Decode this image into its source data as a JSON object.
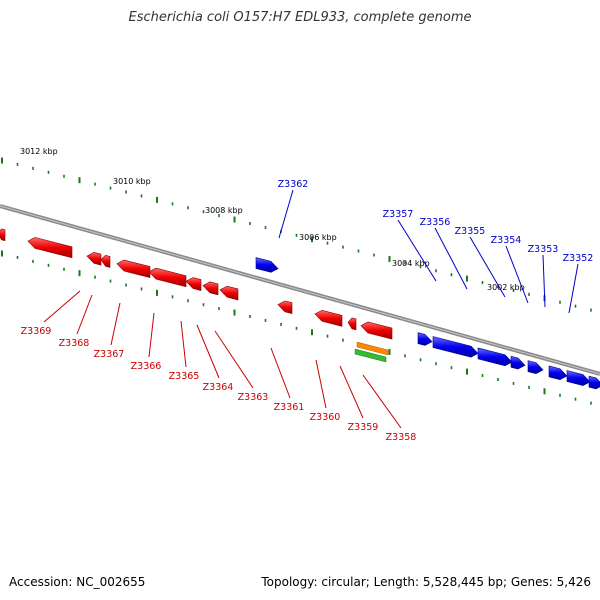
{
  "title": "Escherichia coli O157:H7 EDL933, complete genome",
  "footer": {
    "accession": "Accession: NC_002655",
    "summary": "Topology: circular; Length: 5,528,445 bp; Genes: 5,426"
  },
  "colors": {
    "backbone": "#8a8a8a",
    "tick": "#1a7a1a",
    "forward_gene": "#0000ee",
    "reverse_gene": "#ee0000",
    "forward_label": "#0000cc",
    "reverse_label": "#cc0000",
    "feature_orange": "#ff8800",
    "feature_green": "#33bb33",
    "scale_text": "#000000"
  },
  "scale_labels": [
    "3012 kbp",
    "3010 kbp",
    "3008 kbp",
    "3006 kbp",
    "3004 kbp",
    "3002 kbp"
  ],
  "forward_genes": [
    "Z3362",
    "Z3357",
    "Z3356",
    "Z3355",
    "Z3354",
    "Z3353",
    "Z3352"
  ],
  "reverse_genes": [
    "Z3369",
    "Z3368",
    "Z3367",
    "Z3366",
    "Z3365",
    "Z3364",
    "Z3363",
    "Z3361",
    "Z3360",
    "Z3359",
    "Z3358"
  ]
}
